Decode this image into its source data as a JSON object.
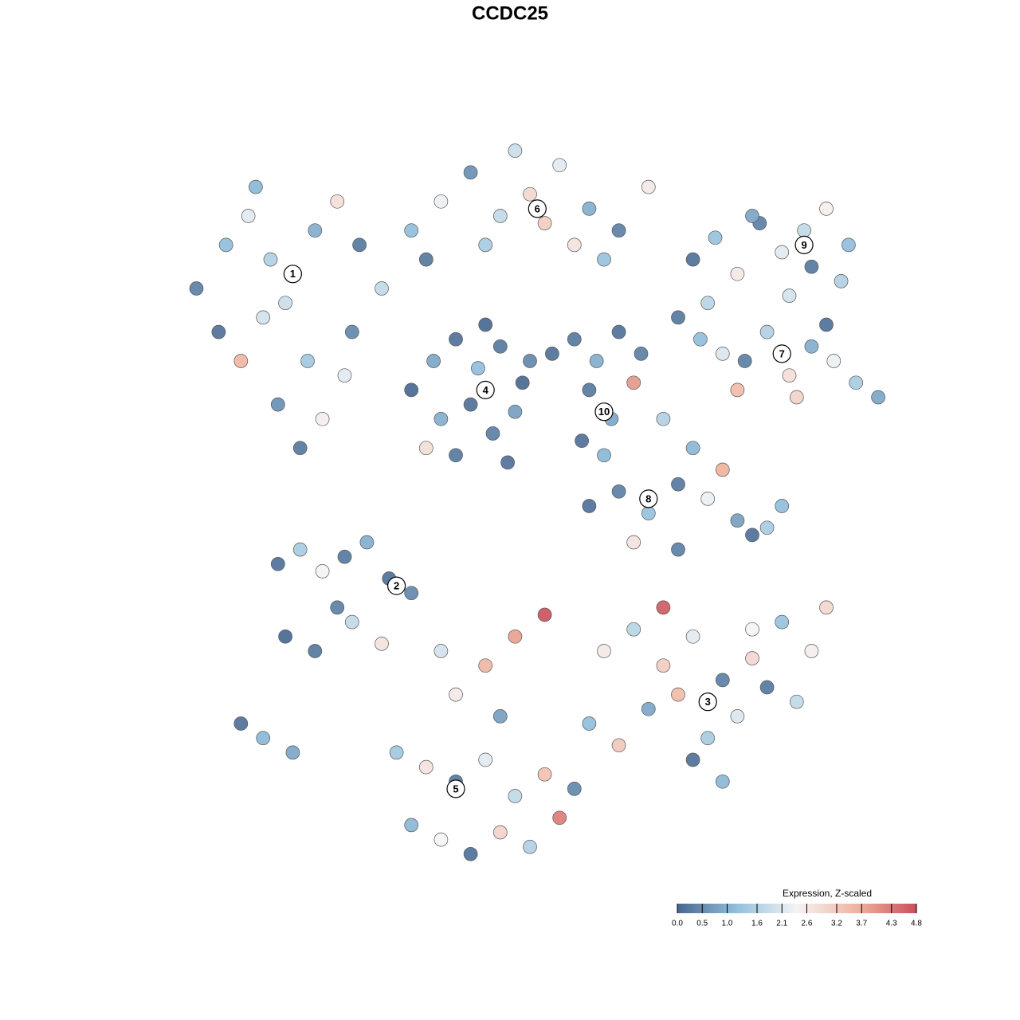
{
  "chart_data": {
    "type": "scatter",
    "title": "CCDC25",
    "xlim": [
      0,
      100
    ],
    "ylim": [
      0,
      100
    ],
    "series": [
      {
        "name": "1",
        "label_x": 18,
        "label_y": 82,
        "x": [
          5,
          9,
          12,
          15,
          18,
          21,
          24,
          27,
          30,
          8,
          14,
          20,
          26,
          16,
          22,
          11,
          19,
          13,
          25,
          17
        ],
        "y": [
          80,
          86,
          90,
          84,
          82,
          88,
          92,
          86,
          80,
          74,
          76,
          70,
          74,
          64,
          62,
          70,
          58,
          94,
          68,
          78
        ],
        "values": [
          0.4,
          1.2,
          2.2,
          1.6,
          2.4,
          1.0,
          2.8,
          0.3,
          1.8,
          0.2,
          2.0,
          1.4,
          0.5,
          0.6,
          2.5,
          3.5,
          0.3,
          1.1,
          2.2,
          1.9
        ]
      },
      {
        "name": "6",
        "label_x": 51,
        "label_y": 91,
        "x": [
          34,
          38,
          42,
          46,
          50,
          54,
          58,
          62,
          66,
          36,
          44,
          48,
          56,
          60,
          52
        ],
        "y": [
          88,
          92,
          96,
          90,
          93,
          97,
          91,
          88,
          94,
          84,
          86,
          99,
          86,
          84,
          89
        ],
        "values": [
          1.2,
          2.3,
          0.6,
          1.8,
          2.9,
          2.2,
          1.0,
          0.4,
          2.6,
          0.3,
          1.5,
          1.9,
          2.7,
          1.3,
          3.1
        ]
      },
      {
        "name": "4",
        "label_x": 44,
        "label_y": 66,
        "x": [
          34,
          37,
          40,
          43,
          46,
          49,
          38,
          42,
          45,
          48,
          36,
          44,
          40,
          47,
          50
        ],
        "y": [
          66,
          70,
          73,
          69,
          72,
          67,
          62,
          64,
          60,
          63,
          58,
          75,
          57,
          56,
          70
        ],
        "values": [
          0.1,
          0.9,
          0.2,
          1.2,
          0.3,
          0.1,
          1.0,
          0.2,
          0.4,
          0.8,
          2.8,
          0.1,
          0.3,
          0.2,
          0.5
        ]
      },
      {
        "name": "10",
        "label_x": 60,
        "label_y": 63,
        "x": [
          53,
          56,
          59,
          62,
          65,
          58,
          61,
          64,
          57,
          60
        ],
        "y": [
          71,
          73,
          70,
          74,
          71,
          66,
          62,
          67,
          59,
          57
        ],
        "values": [
          0.2,
          0.3,
          1.0,
          0.2,
          0.4,
          0.3,
          0.9,
          3.9,
          0.2,
          1.1
        ]
      },
      {
        "name": "9",
        "label_x": 87,
        "label_y": 86,
        "x": [
          72,
          75,
          78,
          81,
          84,
          87,
          90,
          93,
          80,
          88,
          92,
          85
        ],
        "y": [
          84,
          87,
          82,
          89,
          85,
          88,
          91,
          86,
          90,
          83,
          81,
          79
        ],
        "values": [
          0.2,
          1.3,
          2.6,
          0.4,
          2.2,
          1.8,
          2.5,
          1.2,
          0.9,
          0.3,
          1.6,
          2.0
        ]
      },
      {
        "name": "7",
        "label_x": 84,
        "label_y": 71,
        "x": [
          70,
          73,
          76,
          79,
          82,
          85,
          88,
          91,
          94,
          97,
          78,
          86,
          90,
          74
        ],
        "y": [
          76,
          73,
          71,
          70,
          74,
          68,
          72,
          70,
          67,
          65,
          66,
          65,
          75,
          78
        ],
        "values": [
          0.3,
          1.2,
          2.1,
          0.4,
          1.6,
          2.8,
          1.0,
          2.3,
          1.5,
          0.9,
          3.4,
          3.0,
          0.2,
          1.7
        ]
      },
      {
        "name": "8",
        "label_x": 66,
        "label_y": 51,
        "x": [
          58,
          62,
          66,
          70,
          74,
          78,
          82,
          68,
          72,
          76,
          80,
          84,
          64,
          70
        ],
        "y": [
          50,
          52,
          49,
          53,
          51,
          48,
          47,
          62,
          58,
          55,
          46,
          50,
          45,
          44
        ],
        "values": [
          0.2,
          0.4,
          1.3,
          0.3,
          2.3,
          0.8,
          1.5,
          1.6,
          1.1,
          3.6,
          0.2,
          1.2,
          2.7,
          0.4
        ]
      },
      {
        "name": "2",
        "label_x": 32,
        "label_y": 39,
        "x": [
          16,
          19,
          22,
          25,
          28,
          31,
          34,
          17,
          21,
          26,
          30,
          11,
          14,
          18,
          24
        ],
        "y": [
          42,
          44,
          41,
          43,
          45,
          40,
          38,
          32,
          30,
          34,
          31,
          20,
          18,
          16,
          36
        ],
        "values": [
          0.2,
          1.5,
          2.4,
          0.3,
          1.0,
          0.2,
          0.5,
          0.1,
          0.3,
          1.8,
          2.7,
          0.2,
          1.1,
          0.9,
          0.4
        ]
      },
      {
        "name": "3",
        "label_x": 74,
        "label_y": 23,
        "x": [
          60,
          64,
          68,
          72,
          76,
          80,
          84,
          88,
          66,
          70,
          74,
          78,
          82,
          86,
          62,
          72,
          80,
          90,
          68,
          76
        ],
        "y": [
          30,
          33,
          28,
          32,
          26,
          29,
          34,
          30,
          22,
          24,
          18,
          21,
          25,
          23,
          17,
          15,
          33,
          36,
          36,
          12
        ],
        "values": [
          2.6,
          1.7,
          3.1,
          2.2,
          0.4,
          2.9,
          1.3,
          2.5,
          0.9,
          3.4,
          1.5,
          2.1,
          0.3,
          1.8,
          3.2,
          0.2,
          2.4,
          2.9,
          4.6,
          1.1
        ]
      },
      {
        "name": "5",
        "label_x": 40,
        "label_y": 11,
        "x": [
          32,
          36,
          40,
          44,
          48,
          52,
          56,
          34,
          38,
          42,
          46,
          50,
          54,
          58,
          40,
          44,
          48,
          52,
          38,
          46
        ],
        "y": [
          16,
          14,
          12,
          15,
          10,
          13,
          11,
          6,
          4,
          2,
          5,
          3,
          7,
          20,
          24,
          28,
          32,
          35,
          30,
          21
        ],
        "values": [
          1.4,
          2.7,
          0.3,
          2.2,
          1.8,
          3.3,
          0.5,
          1.1,
          2.4,
          0.2,
          3.0,
          1.6,
          4.2,
          1.2,
          2.6,
          3.5,
          3.8,
          4.7,
          2.0,
          0.8
        ]
      }
    ],
    "colorbar": {
      "title": "Expression, Z-scaled",
      "lim": [
        0,
        4.8
      ],
      "ticks": [
        {
          "value": 0,
          "label": "0.0"
        },
        0.5,
        {
          "value": 1,
          "label": "1.0"
        },
        1.6,
        2.1,
        2.6,
        3.2,
        3.7,
        4.3,
        4.8
      ],
      "colorscale": [
        [
          0,
          "#48668f"
        ],
        [
          1.2,
          "#93c0dc"
        ],
        [
          2.4,
          "#f4f4f4"
        ],
        [
          3.6,
          "#f0b49f"
        ],
        [
          4.8,
          "#c8505c"
        ]
      ]
    }
  }
}
